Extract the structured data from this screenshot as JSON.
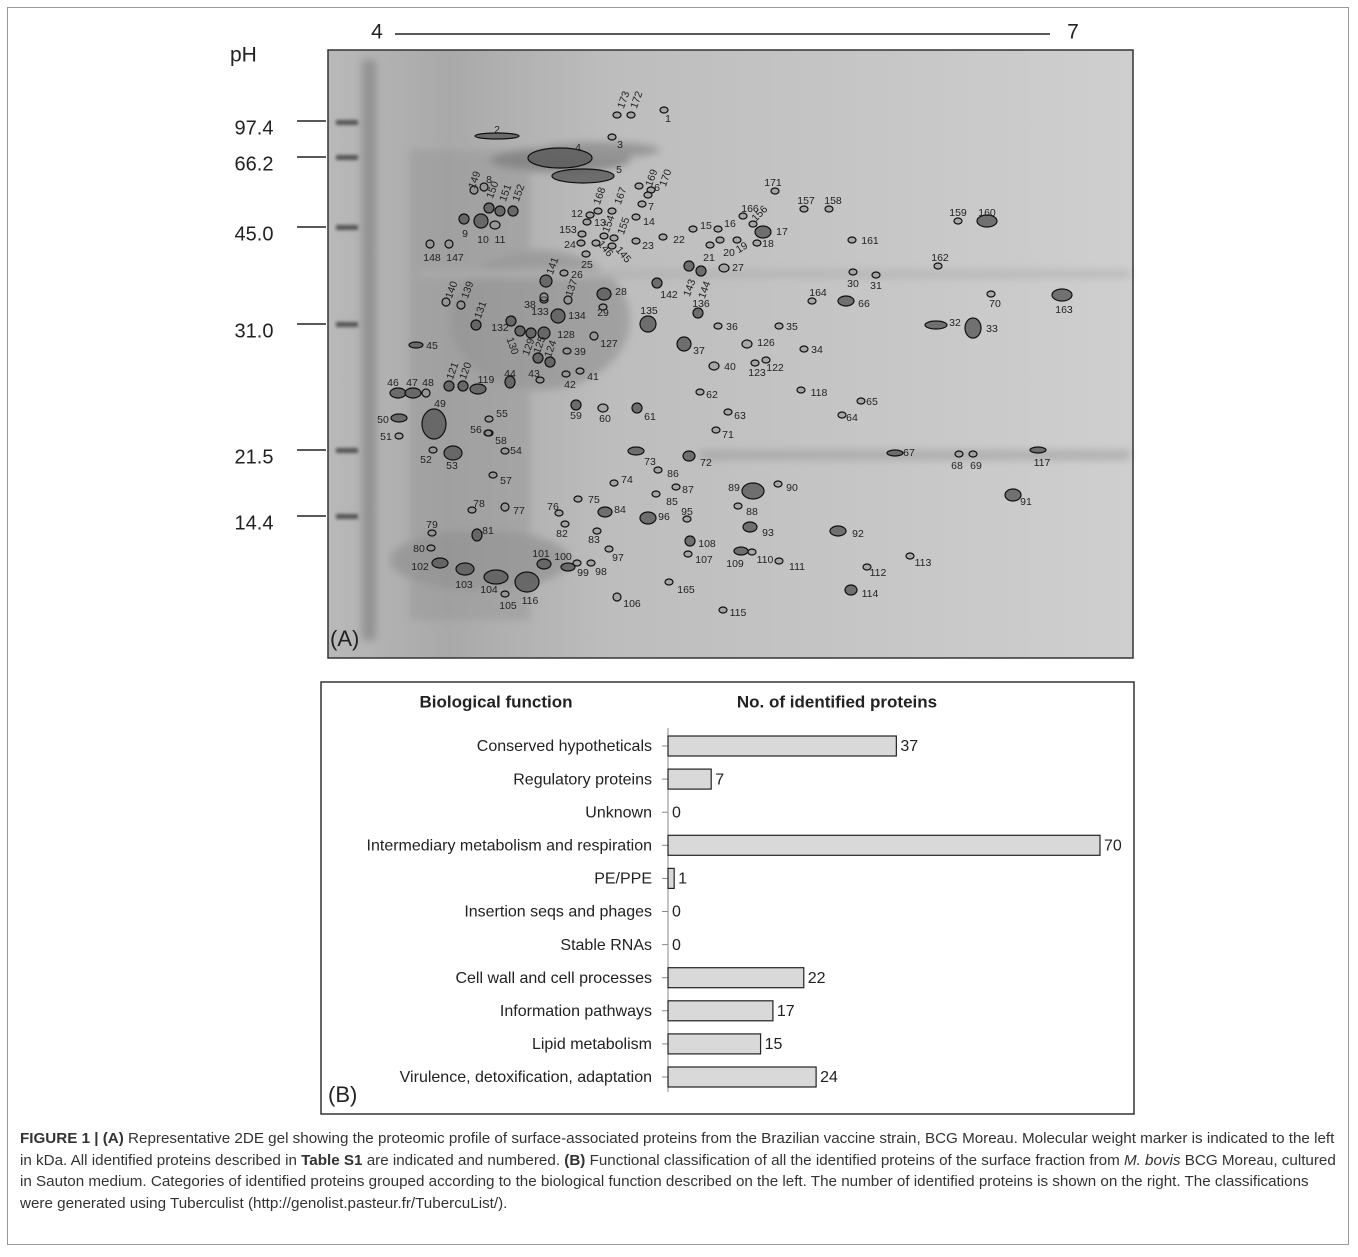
{
  "panel_a": {
    "label": "(A)",
    "ph_axis_title": "pH",
    "ph_start": "4",
    "ph_end": "7",
    "mw_markers": [
      "97.4",
      "66.2",
      "45.0",
      "31.0",
      "21.5",
      "14.4"
    ],
    "spots": [
      "173",
      "172",
      "1",
      "2",
      "3",
      "4",
      "5",
      "169",
      "170",
      "6",
      "7",
      "168",
      "167",
      "12",
      "13",
      "14",
      "153",
      "154",
      "155",
      "24",
      "146",
      "145",
      "23",
      "22",
      "25",
      "8",
      "149",
      "150",
      "151",
      "152",
      "9",
      "10",
      "11",
      "148",
      "147",
      "140",
      "139",
      "131",
      "132",
      "141",
      "26",
      "38",
      "137",
      "133",
      "134",
      "28",
      "29",
      "128",
      "130",
      "127",
      "135",
      "142",
      "143",
      "144",
      "27",
      "21",
      "20",
      "19",
      "18",
      "17",
      "16",
      "15",
      "166",
      "156",
      "171",
      "157",
      "158",
      "161",
      "159",
      "160",
      "162",
      "30",
      "31",
      "164",
      "66",
      "70",
      "163",
      "32",
      "33",
      "136",
      "36",
      "35",
      "37",
      "126",
      "34",
      "122",
      "123",
      "40",
      "118",
      "62",
      "63",
      "65",
      "64",
      "61",
      "60",
      "59",
      "71",
      "67",
      "68",
      "69",
      "117",
      "91",
      "90",
      "89",
      "88",
      "73",
      "72",
      "86",
      "87",
      "85",
      "74",
      "75",
      "76",
      "84",
      "96",
      "95",
      "93",
      "92",
      "108",
      "107",
      "109",
      "110",
      "111",
      "113",
      "112",
      "114",
      "165",
      "115",
      "106",
      "97",
      "98",
      "99",
      "100",
      "101",
      "102",
      "103",
      "104",
      "105",
      "116",
      "83",
      "82",
      "81",
      "78",
      "77",
      "79",
      "80",
      "57",
      "52",
      "53",
      "54",
      "58",
      "56",
      "55",
      "50",
      "51",
      "49",
      "45",
      "46",
      "47",
      "48",
      "119",
      "120",
      "121",
      "44",
      "43",
      "42",
      "41",
      "39",
      "124",
      "125",
      "129"
    ]
  },
  "chart_data": {
    "type": "bar",
    "orientation": "horizontal",
    "panel_label": "(B)",
    "category_header": "Biological function",
    "value_header": "No. of identified proteins",
    "categories": [
      "Conserved hypotheticals",
      "Regulatory proteins",
      "Unknown",
      "Intermediary metabolism and respiration",
      "PE/PPE",
      "Insertion seqs and phages",
      "Stable RNAs",
      "Cell wall and cell processes",
      "Information pathways",
      "Lipid metabolism",
      "Virulence, detoxification, adaptation"
    ],
    "values": [
      37,
      7,
      0,
      70,
      1,
      0,
      0,
      22,
      17,
      15,
      24
    ],
    "color": "#d9d9d9",
    "xlim": [
      0,
      70
    ]
  },
  "caption": [
    {
      "text": "FIGURE 1 | (A)",
      "style": "bold"
    },
    {
      "text": " Representative 2DE gel showing the proteomic profile of surface-associated proteins from the Brazilian vaccine strain, BCG Moreau. Molecular weight marker is indicated to the left in kDa. All identified proteins described in ",
      "style": "normal"
    },
    {
      "text": "Table S1",
      "style": "bold"
    },
    {
      "text": " are indicated and numbered. ",
      "style": "normal"
    },
    {
      "text": "(B)",
      "style": "bold"
    },
    {
      "text": " Functional classification of all the identified proteins of the surface fraction from ",
      "style": "normal"
    },
    {
      "text": "M. bovis",
      "style": "italic"
    },
    {
      "text": " BCG Moreau, cultured in Sauton medium. Categories of identified proteins grouped according to the biological function described on the left. The number of identified proteins is shown on the right. The classifications were generated using Tuberculist (http://genolist.pasteur.fr/TubercuList/).",
      "style": "normal"
    }
  ]
}
